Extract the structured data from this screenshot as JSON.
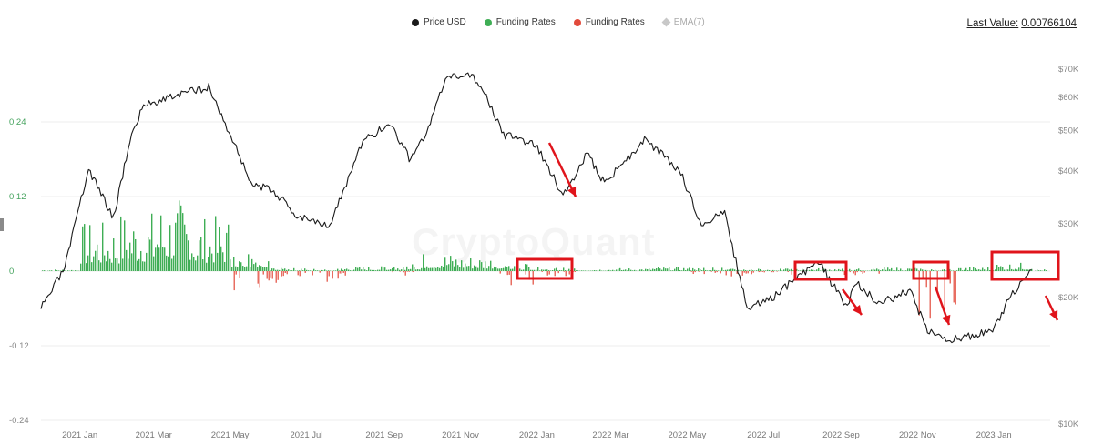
{
  "legend": [
    {
      "label": "Price USD",
      "color": "#1a1a1a",
      "shape": "circle"
    },
    {
      "label": "Funding Rates",
      "color": "#3fae55",
      "shape": "circle"
    },
    {
      "label": "Funding Rates",
      "color": "#e24a3b",
      "shape": "circle"
    },
    {
      "label": "EMA(7)",
      "color": "#bbbbbb",
      "shape": "diamond"
    }
  ],
  "last_value": {
    "label": "Last Value:",
    "value": "0.00766104"
  },
  "watermark": "CryptoQuant",
  "colors": {
    "price": "#1a1a1a",
    "positive": "#3fae55",
    "negative": "#e24a3b",
    "grid": "#ececec",
    "annotation": "#e0141b"
  },
  "chart_data": {
    "type": "bar",
    "x_ticks": [
      "2021 Jan",
      "2021 Mar",
      "2021 May",
      "2021 Jul",
      "2021 Sep",
      "2021 Nov",
      "2022 Jan",
      "2022 Mar",
      "2022 May",
      "2022 Jul",
      "2022 Sep",
      "2022 Nov",
      "2023 Jan"
    ],
    "left_axis": {
      "ticks": [
        "0.24",
        "0.12",
        "0",
        "-0.12",
        "-0.24"
      ],
      "range": [
        -0.24,
        0.24
      ]
    },
    "right_axis": {
      "ticks": [
        "$70K",
        "$60K",
        "$50K",
        "$40K",
        "$30K",
        "$20K",
        "$10K"
      ],
      "scale": "log"
    },
    "series": [
      {
        "name": "Price USD",
        "type": "line",
        "x": [
          "2020-12-01",
          "2020-12-20",
          "2021-01-08",
          "2021-01-28",
          "2021-02-10",
          "2021-02-21",
          "2021-03-13",
          "2021-04-14",
          "2021-05-19",
          "2021-06-05",
          "2021-06-22",
          "2021-07-20",
          "2021-08-15",
          "2021-09-06",
          "2021-09-21",
          "2021-10-05",
          "2021-10-20",
          "2021-11-10",
          "2021-11-26",
          "2021-12-04",
          "2021-12-31",
          "2022-01-22",
          "2022-02-10",
          "2022-02-24",
          "2022-03-28",
          "2022-04-26",
          "2022-05-11",
          "2022-05-31",
          "2022-06-18",
          "2022-07-08",
          "2022-08-14",
          "2022-09-06",
          "2022-09-12",
          "2022-10-01",
          "2022-10-26",
          "2022-11-09",
          "2022-11-21",
          "2022-12-31",
          "2023-01-13",
          "2023-01-31"
        ],
        "values": [
          18800,
          23500,
          40500,
          31000,
          47500,
          57500,
          60000,
          63500,
          37000,
          36000,
          31500,
          29800,
          47000,
          52000,
          43000,
          49000,
          66000,
          68500,
          57000,
          49000,
          46300,
          35000,
          44000,
          37500,
          47500,
          40000,
          30000,
          31700,
          18700,
          20000,
          24400,
          18800,
          21800,
          19400,
          20700,
          16700,
          15800,
          16600,
          19900,
          23300
        ]
      },
      {
        "name": "Funding Rates",
        "type": "bar",
        "sign": "positive",
        "x": [
          "2021-01",
          "2021-02",
          "2021-03",
          "2021-04",
          "2021-05",
          "2021-06",
          "2021-07",
          "2021-08",
          "2021-09",
          "2021-10",
          "2021-11",
          "2021-12",
          "2022-01",
          "2022-02",
          "2022-03",
          "2022-04",
          "2022-05",
          "2022-06",
          "2022-07",
          "2022-08",
          "2022-09",
          "2022-10",
          "2022-11",
          "2022-12",
          "2023-01"
        ],
        "values": [
          0.08,
          0.1,
          0.12,
          0.09,
          0.04,
          0.005,
          0.004,
          0.008,
          0.012,
          0.03,
          0.026,
          0.012,
          0.006,
          0.004,
          0.005,
          0.007,
          0.006,
          0.004,
          0.004,
          0.005,
          0.004,
          0.006,
          0.004,
          0.007,
          0.014
        ]
      },
      {
        "name": "Funding Rates",
        "type": "bar",
        "sign": "negative",
        "x": [
          "2021-05",
          "2021-06",
          "2021-07",
          "2021-09",
          "2021-12",
          "2022-01",
          "2022-05",
          "2022-06",
          "2022-07",
          "2022-09",
          "2022-11"
        ],
        "values": [
          -0.05,
          -0.025,
          -0.02,
          -0.008,
          -0.035,
          -0.01,
          -0.01,
          -0.012,
          -0.008,
          -0.008,
          -0.1
        ]
      },
      {
        "name": "EMA(7)",
        "type": "line",
        "hidden": true
      }
    ]
  }
}
